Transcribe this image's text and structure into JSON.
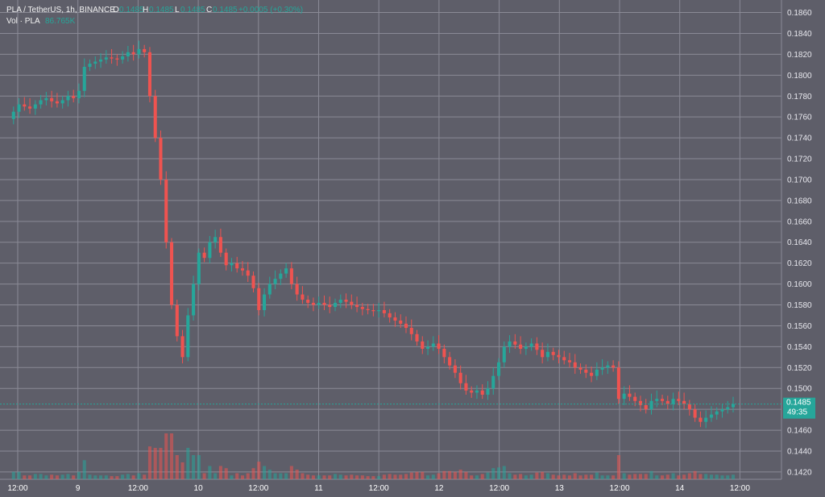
{
  "header": {
    "symbol": "PLA / TetherUS, 1h, BINANCE",
    "o_label": "O",
    "o_value": "0.1485",
    "h_label": "H",
    "h_value": "0.1485",
    "l_label": "L",
    "l_value": "0.1485",
    "c_label": "C",
    "c_value": "0.1485",
    "change": "+0.0005 (+0.30%)",
    "vol_label": "Vol · PLA",
    "vol_value": "86.765K"
  },
  "price_badge": {
    "price": "0.1485",
    "countdown": "49:35"
  },
  "colors": {
    "background": "#5e5e69",
    "grid": "#8a8a96",
    "up": "#26a69a",
    "down": "#ef5350",
    "badge": "#26a69a"
  },
  "chart_data": {
    "type": "candlestick",
    "title": "",
    "ylim": [
      0.1413,
      0.1872
    ],
    "y_ticks": [
      0.142,
      0.144,
      0.146,
      0.148,
      0.15,
      0.152,
      0.154,
      0.156,
      0.158,
      0.16,
      0.162,
      0.164,
      0.166,
      0.168,
      0.17,
      0.172,
      0.174,
      0.176,
      0.178,
      0.18,
      0.182,
      0.184,
      0.186
    ],
    "y_tick_labels": [
      "0.1420",
      "0.1440",
      "0.1460",
      "0.1480",
      "0.1500",
      "0.1520",
      "0.1540",
      "0.1560",
      "0.1580",
      "0.1600",
      "0.1620",
      "0.1640",
      "0.1660",
      "0.1680",
      "0.1700",
      "0.1720",
      "0.1740",
      "0.1760",
      "0.1780",
      "0.1800",
      "0.1820",
      "0.1840",
      "0.1860"
    ],
    "x_ticks": [
      "12:00",
      "9",
      "12:00",
      "10",
      "12:00",
      "11",
      "12:00",
      "12",
      "12:00",
      "13",
      "12:00",
      "14",
      "12:00"
    ],
    "grid": true,
    "bar_interval": "1h",
    "last_price": 0.1485,
    "price_path": [
      0.1758,
      0.1765,
      0.1772,
      0.177,
      0.1768,
      0.1772,
      0.1776,
      0.1778,
      0.1775,
      0.1773,
      0.1776,
      0.178,
      0.1778,
      0.1785,
      0.1808,
      0.1811,
      0.1813,
      0.1815,
      0.1817,
      0.1816,
      0.1815,
      0.1818,
      0.1822,
      0.182,
      0.1825,
      0.1822,
      0.178,
      0.174,
      0.17,
      0.164,
      0.158,
      0.155,
      0.153,
      0.157,
      0.16,
      0.163,
      0.1625,
      0.164,
      0.1645,
      0.163,
      0.1618,
      0.162,
      0.1615,
      0.1613,
      0.1608,
      0.1596,
      0.1575,
      0.159,
      0.16,
      0.1605,
      0.161,
      0.1615,
      0.16,
      0.159,
      0.1585,
      0.1582,
      0.158,
      0.1582,
      0.158,
      0.1578,
      0.1582,
      0.1585,
      0.1583,
      0.158,
      0.1578,
      0.1576,
      0.1575,
      0.1574,
      0.1575,
      0.1572,
      0.1568,
      0.1565,
      0.1562,
      0.1558,
      0.1552,
      0.1545,
      0.1538,
      0.154,
      0.1543,
      0.1538,
      0.153,
      0.1522,
      0.1515,
      0.1505,
      0.1498,
      0.1496,
      0.1498,
      0.1494,
      0.15,
      0.1512,
      0.1525,
      0.154,
      0.1545,
      0.1542,
      0.1538,
      0.154,
      0.1543,
      0.1537,
      0.153,
      0.1535,
      0.1532,
      0.153,
      0.1527,
      0.1525,
      0.152,
      0.1518,
      0.1515,
      0.1512,
      0.1518,
      0.152,
      0.1522,
      0.152,
      0.149,
      0.1495,
      0.1492,
      0.1488,
      0.1484,
      0.148,
      0.1488,
      0.149,
      0.1488,
      0.1485,
      0.149,
      0.1488,
      0.1485,
      0.148,
      0.1472,
      0.1468,
      0.1472,
      0.1475,
      0.1478,
      0.148,
      0.1482,
      0.1485
    ],
    "volume_note": "volume bars shown at bottom, spike during the 9th→10th selloff"
  }
}
